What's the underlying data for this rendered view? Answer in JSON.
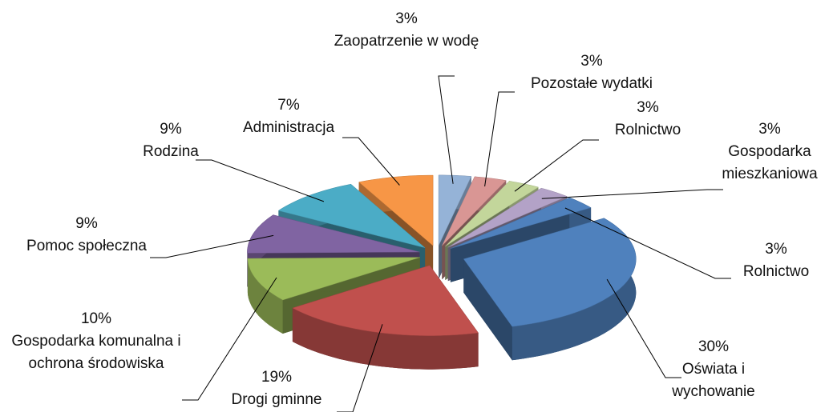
{
  "chart_data": {
    "type": "pie",
    "categories": [
      "Zaopatrzenie w wodę",
      "Pozostałe wydatki",
      "Rolnictwo",
      "Gospodarka mieszkaniowa",
      "Rolnictwo",
      "Oświata i wychowanie",
      "Drogi gminne",
      "Gospodarka komunalna i ochrona środowiska",
      "Pomoc społeczna",
      "Rodzina",
      "Administracja"
    ],
    "values": [
      3,
      3,
      3,
      3,
      3,
      30,
      19,
      10,
      9,
      9,
      7
    ],
    "value_labels": [
      "3%",
      "3%",
      "3%",
      "3%",
      "3%",
      "30%",
      "19%",
      "10%",
      "9%",
      "9%",
      "7%"
    ],
    "colors": [
      "#95b3d7",
      "#d99694",
      "#c3d69b",
      "#b3a2c7",
      "#4f81bd",
      "#4f81bd",
      "#c0504d",
      "#9bbb59",
      "#8064a2",
      "#4bacc6",
      "#f79646"
    ]
  }
}
